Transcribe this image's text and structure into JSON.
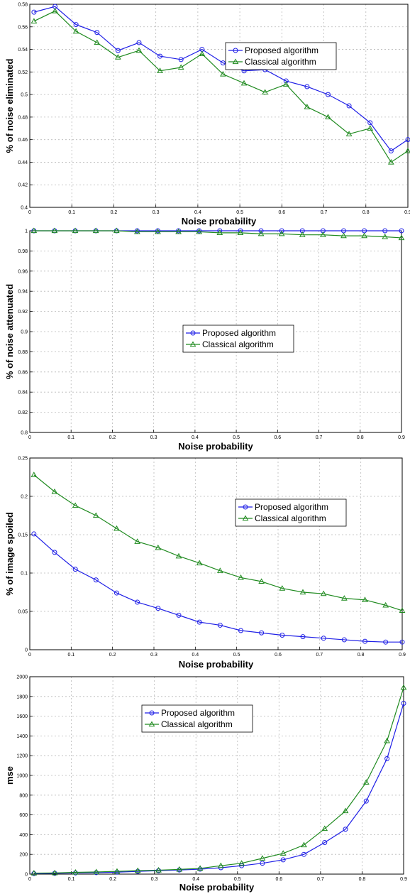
{
  "colors": {
    "proposed": "#1f1fe6",
    "classical": "#1f8a1f"
  },
  "chart_data": [
    {
      "type": "line",
      "xlabel": "Noise probability",
      "ylabel": "% of noise eliminated",
      "xlim": [
        0,
        0.9
      ],
      "ylim": [
        0.4,
        0.58
      ],
      "xticks": [
        "0",
        "0.1",
        "0.2",
        "0.3",
        "0.4",
        "0.5",
        "0.6",
        "0.7",
        "0.8",
        "0.9"
      ],
      "yticks": [
        "0.4",
        "0.42",
        "0.44",
        "0.46",
        "0.48",
        "0.5",
        "0.52",
        "0.54",
        "0.56",
        "0.58"
      ],
      "grid": true,
      "legend_position": "top-right",
      "x": [
        0.01,
        0.06,
        0.11,
        0.16,
        0.21,
        0.26,
        0.31,
        0.36,
        0.41,
        0.46,
        0.51,
        0.56,
        0.61,
        0.66,
        0.71,
        0.76,
        0.81,
        0.86,
        0.9
      ],
      "series": [
        {
          "name": "Proposed algorithm",
          "marker": "circle",
          "values": [
            0.573,
            0.578,
            0.562,
            0.555,
            0.539,
            0.546,
            0.534,
            0.531,
            0.54,
            0.528,
            0.521,
            0.522,
            0.512,
            0.507,
            0.5,
            0.49,
            0.475,
            0.45,
            0.46
          ]
        },
        {
          "name": "Classical algorithm",
          "marker": "triangle",
          "values": [
            0.565,
            0.574,
            0.556,
            0.546,
            0.533,
            0.539,
            0.521,
            0.524,
            0.536,
            0.518,
            0.51,
            0.502,
            0.509,
            0.489,
            0.48,
            0.465,
            0.47,
            0.44,
            0.45
          ]
        }
      ]
    },
    {
      "type": "line",
      "xlabel": "Noise probability",
      "ylabel": "% of noise attenuated",
      "xlim": [
        0,
        0.9
      ],
      "ylim": [
        0.8,
        1
      ],
      "xticks": [
        "0",
        "0.1",
        "0.2",
        "0.3",
        "0.4",
        "0.5",
        "0.6",
        "0.7",
        "0.8",
        "0.9"
      ],
      "yticks": [
        "0.8",
        "0.82",
        "0.84",
        "0.86",
        "0.88",
        "0.9",
        "0.92",
        "0.94",
        "0.96",
        "0.98",
        "1"
      ],
      "grid": true,
      "legend_position": "center",
      "x": [
        0.01,
        0.06,
        0.11,
        0.16,
        0.21,
        0.26,
        0.31,
        0.36,
        0.41,
        0.46,
        0.51,
        0.56,
        0.61,
        0.66,
        0.71,
        0.76,
        0.81,
        0.86,
        0.9
      ],
      "series": [
        {
          "name": "Proposed algorithm",
          "marker": "circle",
          "values": [
            1,
            1,
            1,
            1,
            1,
            1,
            1,
            1,
            1,
            1,
            1,
            1,
            1,
            1,
            1,
            1,
            1,
            1,
            1
          ]
        },
        {
          "name": "Classical algorithm",
          "marker": "triangle",
          "values": [
            1,
            1,
            1,
            1,
            1,
            0.999,
            0.999,
            0.999,
            0.999,
            0.998,
            0.998,
            0.997,
            0.997,
            0.996,
            0.996,
            0.995,
            0.995,
            0.994,
            0.993
          ]
        }
      ]
    },
    {
      "type": "line",
      "xlabel": "Noise probability",
      "ylabel": "% of image spoiled",
      "xlim": [
        0,
        0.9
      ],
      "ylim": [
        0,
        0.25
      ],
      "xticks": [
        "0",
        "0.1",
        "0.2",
        "0.3",
        "0.4",
        "0.5",
        "0.6",
        "0.7",
        "0.8",
        "0.9"
      ],
      "yticks": [
        "0",
        "0.05",
        "0.1",
        "0.15",
        "0.2",
        "0.25"
      ],
      "grid": true,
      "legend_position": "top-right",
      "x": [
        0.01,
        0.06,
        0.11,
        0.16,
        0.21,
        0.26,
        0.31,
        0.36,
        0.41,
        0.46,
        0.51,
        0.56,
        0.61,
        0.66,
        0.71,
        0.76,
        0.81,
        0.86,
        0.9
      ],
      "series": [
        {
          "name": "Proposed algorithm",
          "marker": "circle",
          "values": [
            0.151,
            0.127,
            0.105,
            0.091,
            0.074,
            0.062,
            0.054,
            0.045,
            0.036,
            0.032,
            0.025,
            0.022,
            0.019,
            0.017,
            0.015,
            0.013,
            0.011,
            0.01,
            0.01
          ]
        },
        {
          "name": "Classical algorithm",
          "marker": "triangle",
          "values": [
            0.228,
            0.206,
            0.188,
            0.175,
            0.158,
            0.141,
            0.133,
            0.122,
            0.113,
            0.103,
            0.094,
            0.089,
            0.08,
            0.075,
            0.073,
            0.067,
            0.065,
            0.058,
            0.051
          ]
        }
      ]
    },
    {
      "type": "line",
      "xlabel": "Noise probability",
      "ylabel": "mse",
      "xlim": [
        0,
        0.9
      ],
      "ylim": [
        0,
        2000
      ],
      "xticks": [
        "0",
        "0.1",
        "0.2",
        "0.3",
        "0.4",
        "0.5",
        "0.6",
        "0.7",
        "0.8",
        "0.9"
      ],
      "yticks": [
        "0",
        "200",
        "400",
        "600",
        "800",
        "1000",
        "1200",
        "1400",
        "1600",
        "1800",
        "2000"
      ],
      "grid": true,
      "legend_position": "top-left",
      "x": [
        0.01,
        0.06,
        0.11,
        0.16,
        0.21,
        0.26,
        0.31,
        0.36,
        0.41,
        0.46,
        0.51,
        0.56,
        0.61,
        0.66,
        0.71,
        0.76,
        0.81,
        0.86,
        0.9
      ],
      "series": [
        {
          "name": "Proposed algorithm",
          "marker": "circle",
          "values": [
            5,
            8,
            12,
            15,
            20,
            28,
            35,
            42,
            50,
            65,
            85,
            110,
            145,
            200,
            320,
            455,
            740,
            1170,
            1730
          ]
        },
        {
          "name": "Classical algorithm",
          "marker": "triangle",
          "values": [
            10,
            12,
            18,
            22,
            28,
            35,
            40,
            48,
            58,
            85,
            110,
            160,
            210,
            295,
            460,
            640,
            930,
            1350,
            1890
          ]
        }
      ]
    }
  ]
}
